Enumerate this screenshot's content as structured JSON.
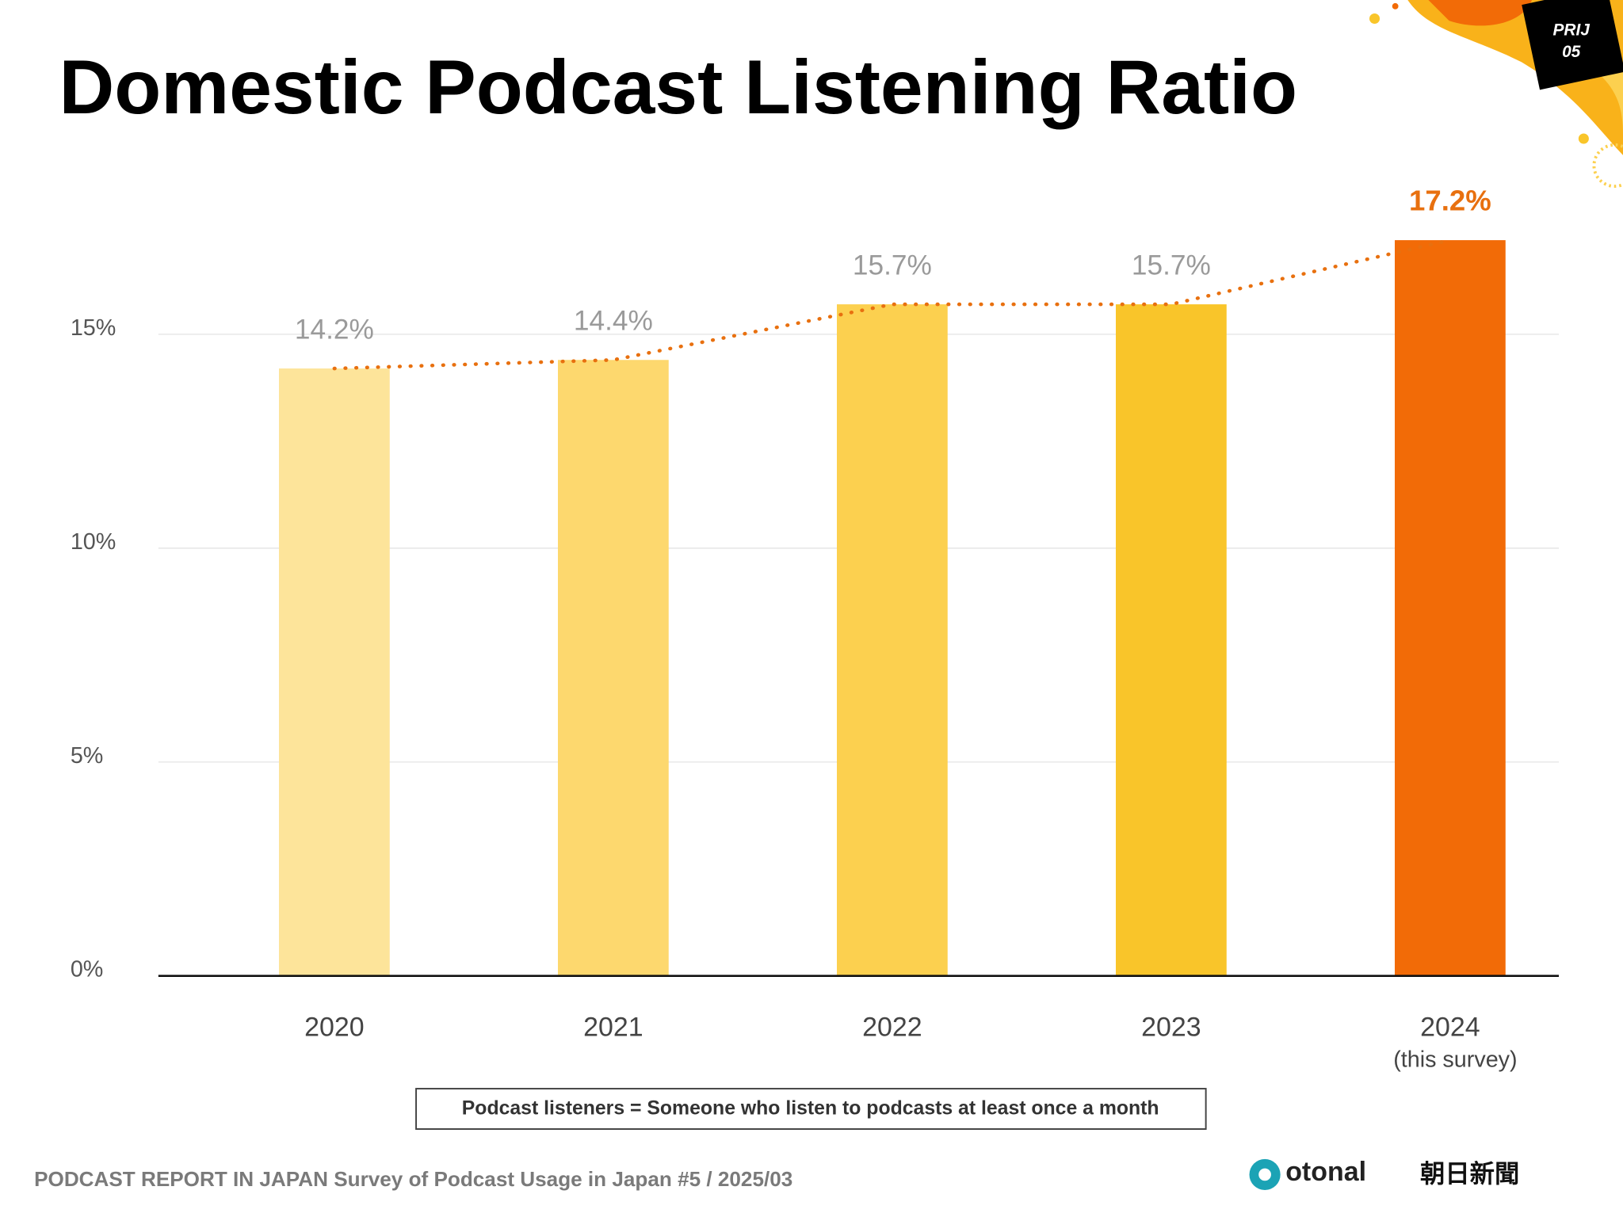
{
  "chart_data": {
    "type": "bar",
    "title": "Domestic Podcast Listening Ratio",
    "categories": [
      "2020",
      "2021",
      "2022",
      "2023",
      "2024"
    ],
    "category_notes": [
      null,
      null,
      null,
      null,
      "(this survey)"
    ],
    "values": [
      14.2,
      14.4,
      15.7,
      15.7,
      17.2
    ],
    "value_labels": [
      "14.2%",
      "14.4%",
      "15.7%",
      "15.7%",
      "17.2%"
    ],
    "colors": [
      "#fde49a",
      "#fdd86e",
      "#fcd04f",
      "#f9c52a",
      "#f26b07"
    ],
    "value_label_colors": [
      "#9a9a9a",
      "#9a9a9a",
      "#9a9a9a",
      "#9a9a9a",
      "#e8700f"
    ],
    "trend_line": {
      "color": "#e8700f",
      "style": "dotted"
    },
    "ylim": [
      0,
      18
    ],
    "yticks": [
      {
        "value": 0,
        "label": "0%"
      },
      {
        "value": 5,
        "label": "5%"
      },
      {
        "value": 10,
        "label": "10%"
      },
      {
        "value": 15,
        "label": "15%"
      }
    ],
    "grid": true
  },
  "note": "Podcast listeners = Someone who listen to podcasts at least once a month",
  "source": "PODCAST REPORT IN JAPAN Survey of Podcast Usage in Japan #5 / 2025/03",
  "badge": [
    "PRIJ",
    "05"
  ],
  "logos": [
    "otonal",
    "朝日新聞"
  ]
}
